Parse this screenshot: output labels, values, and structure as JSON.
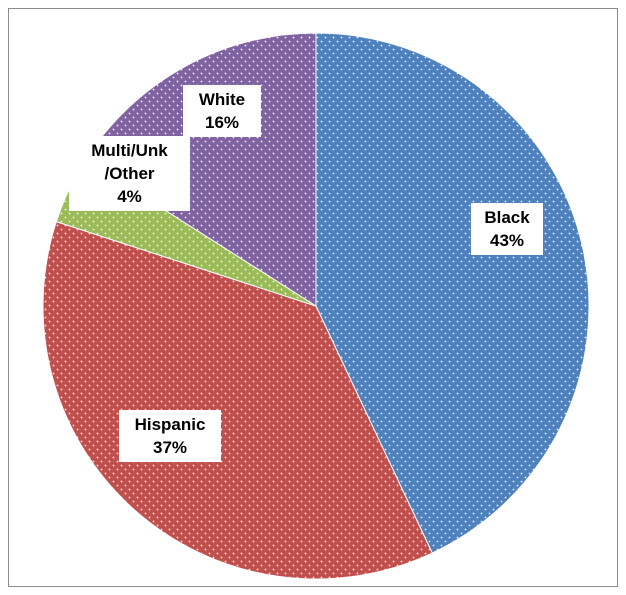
{
  "chart_data": {
    "type": "pie",
    "title": "",
    "slices": [
      {
        "label": "Black",
        "value": 43,
        "value_label": "43%",
        "color": "#4f81bd",
        "pattern": "dotted"
      },
      {
        "label": "Hispanic",
        "value": 37,
        "value_label": "37%",
        "color": "#c0504d",
        "pattern": "dotted"
      },
      {
        "label": "Multi/Unk/Other",
        "label_lines": [
          "Multi/Unk",
          "/Other"
        ],
        "value": 4,
        "value_label": "4%",
        "color": "#9bbb59",
        "pattern": "dotted"
      },
      {
        "label": "White",
        "value": 16,
        "value_label": "16%",
        "color": "#8064a2",
        "pattern": "dotted"
      }
    ],
    "start_angle": "12 o'clock",
    "direction": "clockwise",
    "legend": "none",
    "data_labels": "inside slices"
  }
}
